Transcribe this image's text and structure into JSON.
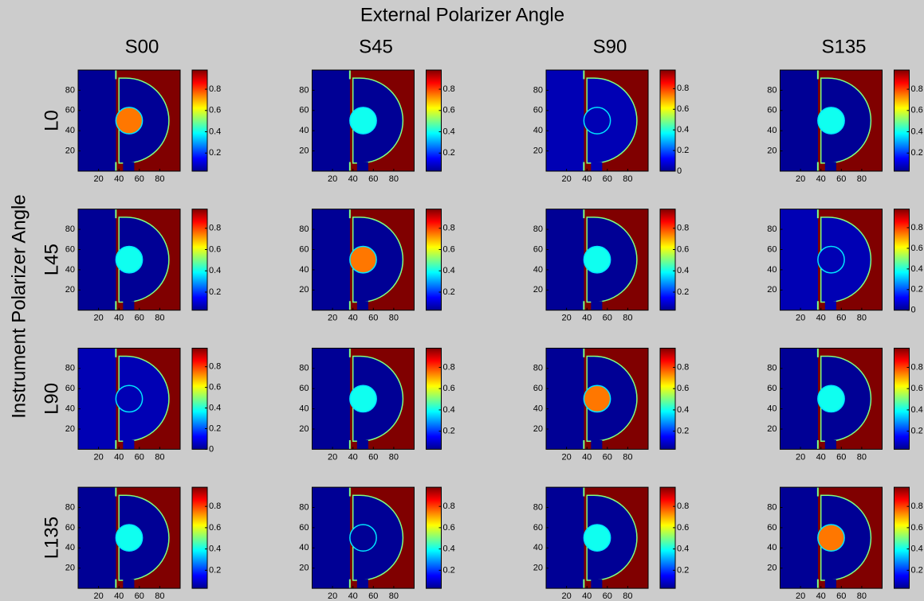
{
  "title": "External Polarizer Angle",
  "ylabel": "Instrument Polarizer Angle",
  "columns": [
    "S00",
    "S45",
    "S90",
    "S135"
  ],
  "rows": [
    "L0",
    "L45",
    "L90",
    "L135"
  ],
  "chart_data": [
    {
      "type": "heatmap",
      "xlim": [
        0,
        100
      ],
      "ylim": [
        0,
        100
      ],
      "xticks": [
        20,
        40,
        60,
        80
      ],
      "yticks": [
        20,
        40,
        60,
        80
      ],
      "clim": [
        0.03,
        0.98
      ],
      "cticks": [
        0.2,
        0.4,
        0.6,
        0.8
      ],
      "background": 0.05,
      "outside": 0.98,
      "center": 0.75
    },
    {
      "type": "heatmap",
      "xlim": [
        0,
        100
      ],
      "ylim": [
        0,
        100
      ],
      "xticks": [
        20,
        40,
        60,
        80
      ],
      "yticks": [
        20,
        40,
        60,
        80
      ],
      "clim": [
        0.03,
        0.98
      ],
      "cticks": [
        0.2,
        0.4,
        0.6,
        0.8
      ],
      "background": 0.05,
      "outside": 0.98,
      "center": 0.4
    },
    {
      "type": "heatmap",
      "xlim": [
        0,
        100
      ],
      "ylim": [
        0,
        100
      ],
      "xticks": [
        20,
        40,
        60,
        80
      ],
      "yticks": [
        20,
        40,
        60,
        80
      ],
      "clim": [
        0,
        0.98
      ],
      "cticks": [
        0,
        0.2,
        0.4,
        0.6,
        0.8
      ],
      "background": 0.05,
      "outside": 0.98,
      "center": 0.05
    },
    {
      "type": "heatmap",
      "xlim": [
        0,
        100
      ],
      "ylim": [
        0,
        100
      ],
      "xticks": [
        20,
        40,
        60,
        80
      ],
      "yticks": [
        20,
        40,
        60,
        80
      ],
      "clim": [
        0.03,
        0.98
      ],
      "cticks": [
        0.2,
        0.4,
        0.6,
        0.8
      ],
      "background": 0.05,
      "outside": 0.98,
      "center": 0.4
    },
    {
      "type": "heatmap",
      "xlim": [
        0,
        100
      ],
      "ylim": [
        0,
        100
      ],
      "xticks": [
        20,
        40,
        60,
        80
      ],
      "yticks": [
        20,
        40,
        60,
        80
      ],
      "clim": [
        0.03,
        0.98
      ],
      "cticks": [
        0.2,
        0.4,
        0.6,
        0.8
      ],
      "background": 0.05,
      "outside": 0.98,
      "center": 0.4
    },
    {
      "type": "heatmap",
      "xlim": [
        0,
        100
      ],
      "ylim": [
        0,
        100
      ],
      "xticks": [
        20,
        40,
        60,
        80
      ],
      "yticks": [
        20,
        40,
        60,
        80
      ],
      "clim": [
        0.03,
        0.98
      ],
      "cticks": [
        0.2,
        0.4,
        0.6,
        0.8
      ],
      "background": 0.05,
      "outside": 0.98,
      "center": 0.75
    },
    {
      "type": "heatmap",
      "xlim": [
        0,
        100
      ],
      "ylim": [
        0,
        100
      ],
      "xticks": [
        20,
        40,
        60,
        80
      ],
      "yticks": [
        20,
        40,
        60,
        80
      ],
      "clim": [
        0.03,
        0.98
      ],
      "cticks": [
        0.2,
        0.4,
        0.6,
        0.8
      ],
      "background": 0.05,
      "outside": 0.98,
      "center": 0.4
    },
    {
      "type": "heatmap",
      "xlim": [
        0,
        100
      ],
      "ylim": [
        0,
        100
      ],
      "xticks": [
        20,
        40,
        60,
        80
      ],
      "yticks": [
        20,
        40,
        60,
        80
      ],
      "clim": [
        0,
        0.98
      ],
      "cticks": [
        0,
        0.2,
        0.4,
        0.6,
        0.8
      ],
      "background": 0.05,
      "outside": 0.98,
      "center": 0.05
    },
    {
      "type": "heatmap",
      "xlim": [
        0,
        100
      ],
      "ylim": [
        0,
        100
      ],
      "xticks": [
        20,
        40,
        60,
        80
      ],
      "yticks": [
        20,
        40,
        60,
        80
      ],
      "clim": [
        0,
        0.98
      ],
      "cticks": [
        0,
        0.2,
        0.4,
        0.6,
        0.8
      ],
      "background": 0.05,
      "outside": 0.98,
      "center": 0.05
    },
    {
      "type": "heatmap",
      "xlim": [
        0,
        100
      ],
      "ylim": [
        0,
        100
      ],
      "xticks": [
        20,
        40,
        60,
        80
      ],
      "yticks": [
        20,
        40,
        60,
        80
      ],
      "clim": [
        0.03,
        0.98
      ],
      "cticks": [
        0.2,
        0.4,
        0.6,
        0.8
      ],
      "background": 0.05,
      "outside": 0.98,
      "center": 0.4
    },
    {
      "type": "heatmap",
      "xlim": [
        0,
        100
      ],
      "ylim": [
        0,
        100
      ],
      "xticks": [
        20,
        40,
        60,
        80
      ],
      "yticks": [
        20,
        40,
        60,
        80
      ],
      "clim": [
        0.03,
        0.98
      ],
      "cticks": [
        0.2,
        0.4,
        0.6,
        0.8
      ],
      "background": 0.05,
      "outside": 0.98,
      "center": 0.75
    },
    {
      "type": "heatmap",
      "xlim": [
        0,
        100
      ],
      "ylim": [
        0,
        100
      ],
      "xticks": [
        20,
        40,
        60,
        80
      ],
      "yticks": [
        20,
        40,
        60,
        80
      ],
      "clim": [
        0.03,
        0.98
      ],
      "cticks": [
        0.2,
        0.4,
        0.6,
        0.8
      ],
      "background": 0.05,
      "outside": 0.98,
      "center": 0.4
    },
    {
      "type": "heatmap",
      "xlim": [
        0,
        100
      ],
      "ylim": [
        0,
        100
      ],
      "xticks": [
        20,
        40,
        60,
        80
      ],
      "yticks": [
        20,
        40,
        60,
        80
      ],
      "clim": [
        0.03,
        0.98
      ],
      "cticks": [
        0.2,
        0.4,
        0.6,
        0.8
      ],
      "background": 0.05,
      "outside": 0.98,
      "center": 0.4
    },
    {
      "type": "heatmap",
      "xlim": [
        0,
        100
      ],
      "ylim": [
        0,
        100
      ],
      "xticks": [
        20,
        40,
        60,
        80
      ],
      "yticks": [
        20,
        40,
        60,
        80
      ],
      "clim": [
        0.03,
        0.98
      ],
      "cticks": [
        0.2,
        0.4,
        0.6,
        0.8
      ],
      "background": 0.05,
      "outside": 0.98,
      "center": 0.05
    },
    {
      "type": "heatmap",
      "xlim": [
        0,
        100
      ],
      "ylim": [
        0,
        100
      ],
      "xticks": [
        20,
        40,
        60,
        80
      ],
      "yticks": [
        20,
        40,
        60,
        80
      ],
      "clim": [
        0.03,
        0.98
      ],
      "cticks": [
        0.2,
        0.4,
        0.6,
        0.8
      ],
      "background": 0.05,
      "outside": 0.98,
      "center": 0.4
    },
    {
      "type": "heatmap",
      "xlim": [
        0,
        100
      ],
      "ylim": [
        0,
        100
      ],
      "xticks": [
        20,
        40,
        60,
        80
      ],
      "yticks": [
        20,
        40,
        60,
        80
      ],
      "clim": [
        0.03,
        0.98
      ],
      "cticks": [
        0.2,
        0.4,
        0.6,
        0.8
      ],
      "background": 0.05,
      "outside": 0.98,
      "center": 0.75
    }
  ]
}
